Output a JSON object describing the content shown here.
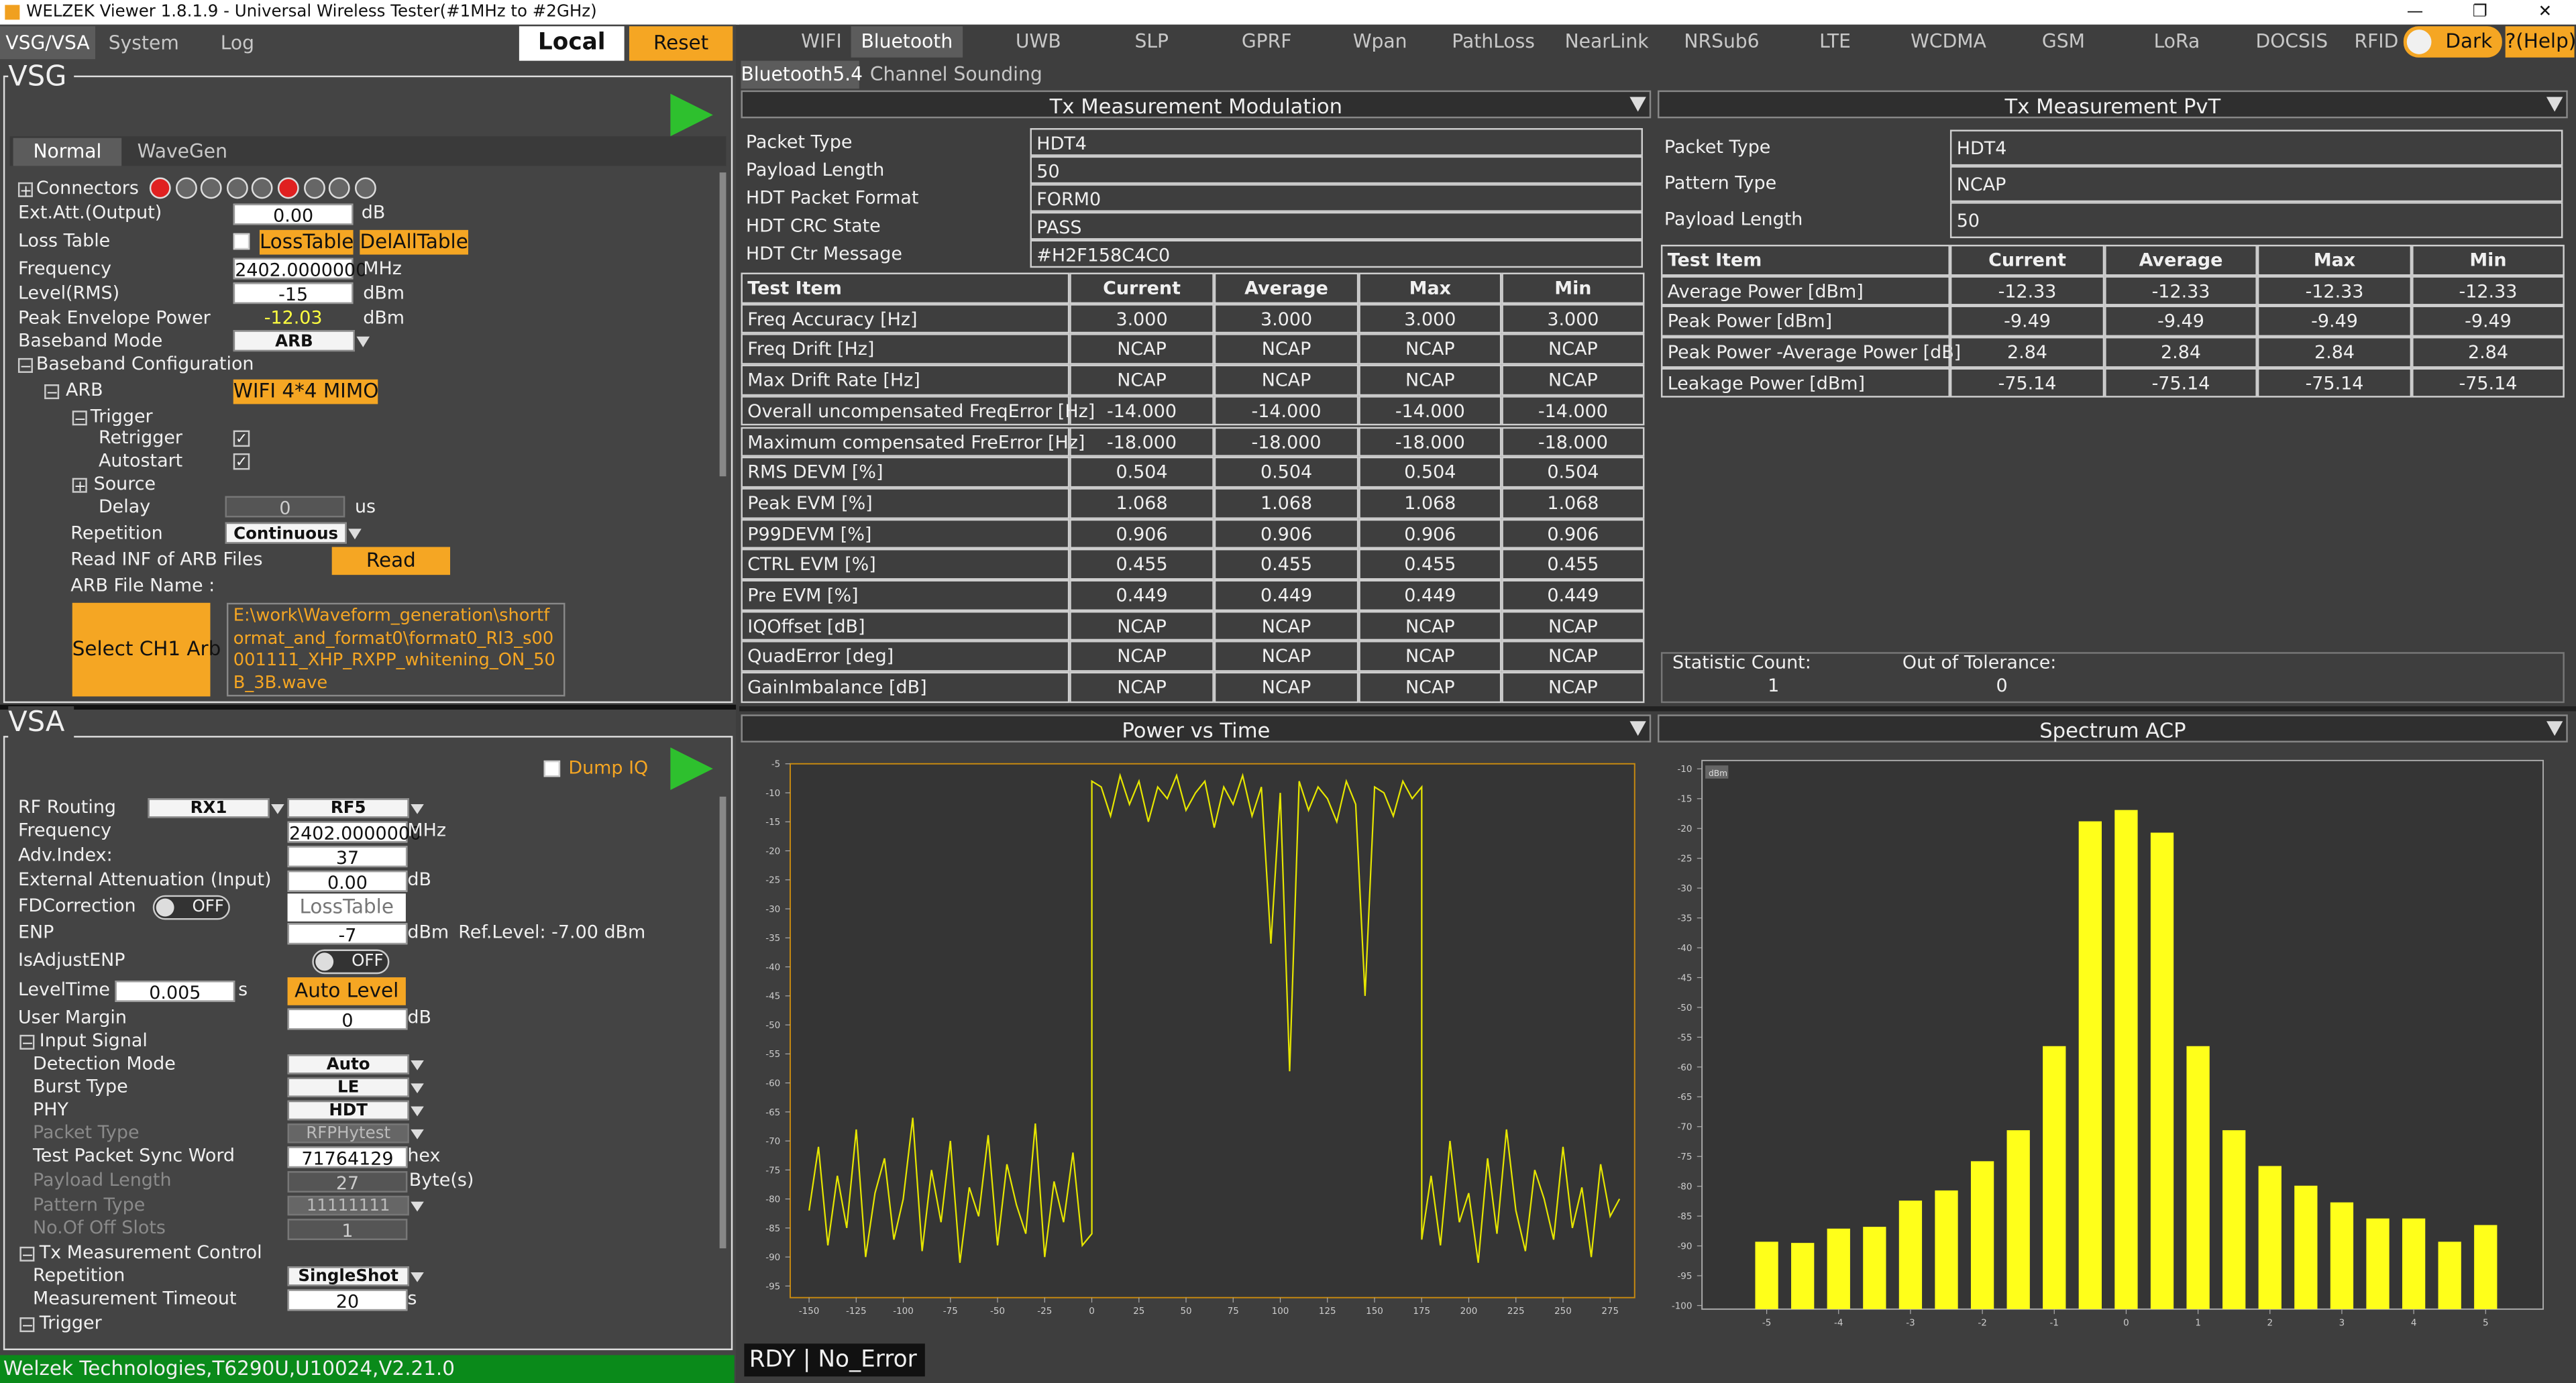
{
  "title_bar": {
    "title": "WELZEK Viewer 1.8.1.9 - Universal Wireless Tester(#1MHz to #2GHz)"
  },
  "left_tabs": [
    "VSG/VSA",
    "System",
    "Log"
  ],
  "buttons": {
    "local": "Local",
    "reset": "Reset"
  },
  "vsg": {
    "title": "VSG",
    "tabs": [
      "Normal",
      "WaveGen"
    ],
    "connectors_label": "Connectors",
    "ext_att": {
      "label": "Ext.Att.(Output)",
      "value": "0.00",
      "unit": "dB"
    },
    "loss_table": {
      "label": "Loss Table",
      "button1": "LossTable",
      "button2": "DelAllTable"
    },
    "frequency": {
      "label": "Frequency",
      "value": "2402.0000000",
      "unit": "MHz"
    },
    "level": {
      "label": "Level(RMS)",
      "value": "-15",
      "unit": "dBm"
    },
    "peak_envelope_power": {
      "label": "Peak Envelope Power",
      "value": "-12.03",
      "unit": "dBm"
    },
    "baseband_mode": {
      "label": "Baseband Mode",
      "value": "ARB"
    },
    "baseband_configuration": "Baseband Configuration",
    "arb": {
      "label": "ARB",
      "value": "WIFI 4*4 MIMO"
    },
    "trigger": "Trigger",
    "retrigger": "Retrigger",
    "autostart": "Autostart",
    "source": "Source",
    "delay": {
      "label": "Delay",
      "value": "0",
      "unit": "us"
    },
    "repetition": {
      "label": "Repetition",
      "value": "Continuous"
    },
    "read_inf": {
      "label": "Read INF of ARB Files",
      "button": "Read"
    },
    "arb_file": {
      "label": "ARB File Name :",
      "button": "Select CH1 Arb",
      "path": "E:\\work\\Waveform_generation\\shortformat_and_format0\\format0_RI3_s00001111_XHP_RXPP_whitening_ON_50B_3B.wave"
    }
  },
  "vsa": {
    "title": "VSA",
    "dump_iq": "Dump IQ",
    "rf_routing": {
      "label": "RF Routing",
      "value1": "RX1",
      "value2": "RF5"
    },
    "frequency": {
      "label": "Frequency",
      "value": "2402.0000000",
      "unit": "MHz"
    },
    "adv_index": {
      "label": "Adv.Index:",
      "value": "37"
    },
    "ext_att": {
      "label": "External Attenuation (Input)",
      "value": "0.00",
      "unit": "dB"
    },
    "fd_correction": {
      "label": "FDCorrection",
      "toggle": "OFF",
      "button": "LossTable"
    },
    "enp": {
      "label": "ENP",
      "value": "-7",
      "unit": "dBm",
      "ref_level": "Ref.Level: -7.00 dBm"
    },
    "is_adjust_enp": {
      "label": "IsAdjustENP",
      "toggle": "OFF"
    },
    "level_time": {
      "label": "LevelTime",
      "value": "0.005",
      "unit": "s",
      "button": "Auto Level"
    },
    "user_margin": {
      "label": "User Margin",
      "value": "0",
      "unit": "dB"
    },
    "input_signal": "Input Signal",
    "detection_mode": {
      "label": "Detection Mode",
      "value": "Auto"
    },
    "burst_type": {
      "label": "Burst Type",
      "value": "LE"
    },
    "phy": {
      "label": "PHY",
      "value": "HDT"
    },
    "packet_type": {
      "label": "Packet Type",
      "value": "RFPHytest"
    },
    "sync_word": {
      "label": "Test Packet Sync Word",
      "value": "71764129",
      "unit": "hex"
    },
    "payload_length": {
      "label": "Payload Length",
      "value": "27",
      "unit": "Byte(s)"
    },
    "pattern_type": {
      "label": "Pattern Type",
      "value": "11111111"
    },
    "off_slots": {
      "label": "No.Of Off Slots",
      "value": "1"
    },
    "tx_measurement_control": "Tx Measurement Control",
    "repetition": {
      "label": "Repetition",
      "value": "SingleShot"
    },
    "timeout": {
      "label": "Measurement Timeout",
      "value": "20",
      "unit": "s"
    },
    "trigger": "Trigger"
  },
  "status_bar": "Welzek Technologies,T6290U,U10024,V2.21.0",
  "top_tabs": [
    "WIFI",
    "Bluetooth",
    "UWB",
    "SLP",
    "GPRF",
    "Wpan",
    "PathLoss",
    "NearLink",
    "NRSub6",
    "LTE",
    "WCDMA",
    "GSM",
    "LoRa",
    "DOCSIS",
    "RFID"
  ],
  "theme_toggle": "Dark",
  "help": "?(Help)",
  "sub_tabs": [
    "Bluetooth5.4",
    "Channel Sounding"
  ],
  "modulation": {
    "title": "Tx Measurement Modulation",
    "info": [
      [
        "Packet Type",
        "HDT4"
      ],
      [
        "Payload Length",
        "50"
      ],
      [
        "HDT Packet Format",
        "FORM0"
      ],
      [
        "HDT CRC State",
        "PASS"
      ],
      [
        "HDT Ctr Message",
        "#H2F158C4C0"
      ]
    ],
    "headers": [
      "Test Item",
      "Current",
      "Average",
      "Max",
      "Min"
    ],
    "rows": [
      [
        "Freq Accuracy [Hz]",
        "3.000",
        "3.000",
        "3.000",
        "3.000"
      ],
      [
        "Freq Drift [Hz]",
        "NCAP",
        "NCAP",
        "NCAP",
        "NCAP"
      ],
      [
        "Max Drift Rate [Hz]",
        "NCAP",
        "NCAP",
        "NCAP",
        "NCAP"
      ],
      [
        "Overall uncompensated FreqError [Hz]",
        "-14.000",
        "-14.000",
        "-14.000",
        "-14.000"
      ],
      [
        "Maximum compensated FreError [Hz]",
        "-18.000",
        "-18.000",
        "-18.000",
        "-18.000"
      ],
      [
        "RMS DEVM [%]",
        "0.504",
        "0.504",
        "0.504",
        "0.504"
      ],
      [
        "Peak EVM [%]",
        "1.068",
        "1.068",
        "1.068",
        "1.068"
      ],
      [
        "P99DEVM [%]",
        "0.906",
        "0.906",
        "0.906",
        "0.906"
      ],
      [
        "CTRL EVM [%]",
        "0.455",
        "0.455",
        "0.455",
        "0.455"
      ],
      [
        "Pre EVM [%]",
        "0.449",
        "0.449",
        "0.449",
        "0.449"
      ],
      [
        "IQOffset [dB]",
        "NCAP",
        "NCAP",
        "NCAP",
        "NCAP"
      ],
      [
        "QuadError [deg]",
        "NCAP",
        "NCAP",
        "NCAP",
        "NCAP"
      ],
      [
        "GainImbalance [dB]",
        "NCAP",
        "NCAP",
        "NCAP",
        "NCAP"
      ]
    ]
  },
  "pvt": {
    "title": "Tx Measurement PvT",
    "info": [
      [
        "Packet Type",
        "HDT4"
      ],
      [
        "Pattern Type",
        "NCAP"
      ],
      [
        "Payload Length",
        "50"
      ]
    ],
    "headers": [
      "Test Item",
      "Current",
      "Average",
      "Max",
      "Min"
    ],
    "rows": [
      [
        "Average Power [dBm]",
        "-12.33",
        "-12.33",
        "-12.33",
        "-12.33"
      ],
      [
        "Peak Power [dBm]",
        "-9.49",
        "-9.49",
        "-9.49",
        "-9.49"
      ],
      [
        "Peak Power -Average Power [dB]",
        "2.84",
        "2.84",
        "2.84",
        "2.84"
      ],
      [
        "Leakage Power [dBm]",
        "-75.14",
        "-75.14",
        "-75.14",
        "-75.14"
      ]
    ],
    "statistic_count": {
      "label": "Statistic Count:",
      "value": "1"
    },
    "out_of_tolerance": {
      "label": "Out of Tolerance:",
      "value": "0"
    }
  },
  "state": "RDY | No_Error",
  "power_vs_time": {
    "title": "Power vs Time",
    "chart": {
      "type": "line",
      "color": "#e6e600",
      "x": [
        -150,
        -145,
        -140,
        -135,
        -130,
        -125,
        -120,
        -115,
        -110,
        -105,
        -100,
        -95,
        -90,
        -85,
        -80,
        -75,
        -70,
        -65,
        -60,
        -55,
        -50,
        -45,
        -40,
        -35,
        -30,
        -25,
        -20,
        -15,
        -10,
        -5,
        0,
        0,
        5,
        10,
        15,
        20,
        25,
        30,
        35,
        40,
        45,
        50,
        55,
        60,
        65,
        70,
        75,
        80,
        85,
        90,
        95,
        100,
        105,
        110,
        115,
        120,
        125,
        130,
        135,
        140,
        145,
        150,
        155,
        160,
        165,
        170,
        175,
        175,
        180,
        185,
        190,
        195,
        200,
        205,
        210,
        215,
        220,
        225,
        230,
        235,
        240,
        245,
        250,
        255,
        260,
        265,
        270,
        275,
        280
      ],
      "values": [
        -82,
        -71,
        -88,
        -76,
        -85,
        -68,
        -90,
        -79,
        -73,
        -87,
        -80,
        -66,
        -89,
        -75,
        -84,
        -70,
        -91,
        -78,
        -83,
        -69,
        -88,
        -74,
        -81,
        -86,
        -67,
        -90,
        -77,
        -84,
        -72,
        -88,
        -86,
        -8,
        -9,
        -14,
        -7,
        -12,
        -8,
        -15,
        -9,
        -11,
        -7,
        -13,
        -10,
        -8,
        -16,
        -9,
        -12,
        -7,
        -14,
        -9,
        -36,
        -10,
        -58,
        -8,
        -13,
        -9,
        -11,
        -15,
        -8,
        -12,
        -45,
        -9,
        -10,
        -14,
        -8,
        -11,
        -9,
        -87,
        -76,
        -88,
        -70,
        -84,
        -79,
        -91,
        -73,
        -86,
        -68,
        -82,
        -89,
        -75,
        -80,
        -87,
        -71,
        -85,
        -78,
        -90,
        -74,
        -83,
        -80
      ],
      "xlim": [
        -160,
        288
      ],
      "ylim": [
        -5,
        -97
      ],
      "xticks": [
        -150,
        -125,
        -100,
        -75,
        -50,
        -25,
        0,
        25,
        50,
        75,
        100,
        125,
        150,
        175,
        200,
        225,
        250,
        275
      ],
      "yticks": [
        -5,
        -10,
        -15,
        -20,
        -25,
        -30,
        -35,
        -40,
        -45,
        -50,
        -55,
        -60,
        -65,
        -70,
        -75,
        -80,
        -85,
        -90,
        -95
      ]
    }
  },
  "spectrum_acp": {
    "title": "Spectrum ACP",
    "chart": {
      "type": "bar",
      "color": "#ffff1a",
      "unit_label": "dBm",
      "x": [
        -5,
        -4.5,
        -4,
        -3.5,
        -3,
        -2.5,
        -2,
        -1.5,
        -1,
        -0.5,
        0,
        0.5,
        1,
        1.5,
        2,
        2.5,
        3,
        3.5,
        4,
        4.5,
        5
      ],
      "values": [
        -89.3,
        -89.5,
        -87.1,
        -86.8,
        -82.4,
        -80.7,
        -75.8,
        -70.6,
        -56.5,
        -18.8,
        -16.9,
        -20.7,
        -56.5,
        -70.6,
        -76.6,
        -79.9,
        -82.7,
        -85.4,
        -85.4,
        -89.3,
        -86.5
      ],
      "xlim": [
        -5.9,
        5.8
      ],
      "ylim": [
        -8.6,
        -100.6
      ],
      "xticks": [
        -5,
        -4,
        -3,
        -2,
        -1,
        0,
        1,
        2,
        3,
        4,
        5
      ],
      "yticks": [
        -10,
        -15,
        -20,
        -25,
        -30,
        -35,
        -40,
        -45,
        -50,
        -55,
        -60,
        -65,
        -70,
        -75,
        -80,
        -85,
        -90,
        -95,
        -100
      ]
    }
  }
}
